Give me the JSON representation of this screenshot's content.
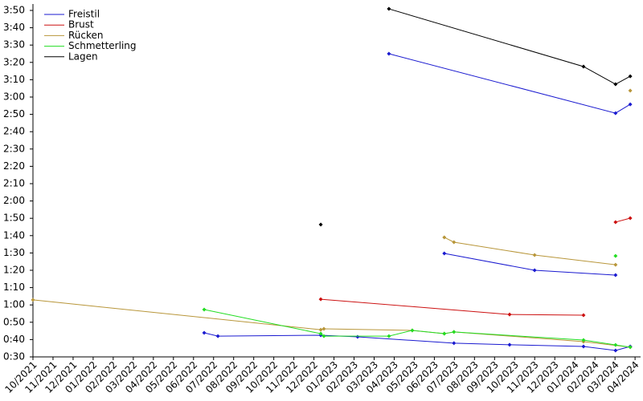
{
  "chart_data": {
    "type": "line",
    "legend": "upper left",
    "xlim": [
      2021.75,
      2024.273
    ],
    "ylim": [
      30,
      233.7
    ],
    "xticks": [
      {
        "value": 2021.75,
        "label": "10/2021"
      },
      {
        "value": 2021.8333,
        "label": "11/2021"
      },
      {
        "value": 2021.9167,
        "label": "12/2021"
      },
      {
        "value": 2022,
        "label": "01/2022"
      },
      {
        "value": 2022.0833,
        "label": "02/2022"
      },
      {
        "value": 2022.1667,
        "label": "03/2022"
      },
      {
        "value": 2022.25,
        "label": "04/2022"
      },
      {
        "value": 2022.3333,
        "label": "05/2022"
      },
      {
        "value": 2022.4167,
        "label": "06/2022"
      },
      {
        "value": 2022.5,
        "label": "07/2022"
      },
      {
        "value": 2022.5833,
        "label": "08/2022"
      },
      {
        "value": 2022.6667,
        "label": "09/2022"
      },
      {
        "value": 2022.75,
        "label": "10/2022"
      },
      {
        "value": 2022.8333,
        "label": "11/2022"
      },
      {
        "value": 2022.9167,
        "label": "12/2022"
      },
      {
        "value": 2023,
        "label": "01/2023"
      },
      {
        "value": 2023.0833,
        "label": "02/2023"
      },
      {
        "value": 2023.1667,
        "label": "03/2023"
      },
      {
        "value": 2023.25,
        "label": "04/2023"
      },
      {
        "value": 2023.3333,
        "label": "05/2023"
      },
      {
        "value": 2023.4167,
        "label": "06/2023"
      },
      {
        "value": 2023.5,
        "label": "07/2023"
      },
      {
        "value": 2023.5833,
        "label": "08/2023"
      },
      {
        "value": 2023.6667,
        "label": "09/2023"
      },
      {
        "value": 2023.75,
        "label": "10/2023"
      },
      {
        "value": 2023.8333,
        "label": "11/2023"
      },
      {
        "value": 2023.9167,
        "label": "12/2023"
      },
      {
        "value": 2024,
        "label": "01/2024"
      },
      {
        "value": 2024.0833,
        "label": "02/2024"
      },
      {
        "value": 2024.1667,
        "label": "03/2024"
      },
      {
        "value": 2024.25,
        "label": "04/2024"
      }
    ],
    "yticks": [
      {
        "value": 30,
        "label": "0:30"
      },
      {
        "value": 40,
        "label": "0:40"
      },
      {
        "value": 50,
        "label": "0:50"
      },
      {
        "value": 60,
        "label": "1:00"
      },
      {
        "value": 70,
        "label": "1:10"
      },
      {
        "value": 80,
        "label": "1:20"
      },
      {
        "value": 90,
        "label": "1:30"
      },
      {
        "value": 100,
        "label": "1:40"
      },
      {
        "value": 110,
        "label": "1:50"
      },
      {
        "value": 120,
        "label": "2:00"
      },
      {
        "value": 130,
        "label": "2:10"
      },
      {
        "value": 140,
        "label": "2:20"
      },
      {
        "value": 150,
        "label": "2:30"
      },
      {
        "value": 160,
        "label": "2:40"
      },
      {
        "value": 170,
        "label": "2:50"
      },
      {
        "value": 180,
        "label": "3:00"
      },
      {
        "value": 190,
        "label": "3:10"
      },
      {
        "value": 200,
        "label": "3:20"
      },
      {
        "value": 210,
        "label": "3:30"
      },
      {
        "value": 220,
        "label": "3:40"
      },
      {
        "value": 230,
        "label": "3:50"
      }
    ],
    "series": [
      {
        "name": "Freistil",
        "color": "#1a1ad0",
        "x": [
          2022.461,
          2022.518,
          2022.945,
          2023.098,
          2023.498,
          2023.729,
          2024.036,
          2024.169,
          2024.23
        ],
        "values": [
          43.9,
          42,
          42.5,
          41.6,
          37.9,
          37,
          36,
          33.7,
          36
        ]
      },
      {
        "name": "Brust",
        "color": "#cc1010",
        "x": [
          2022.945,
          2023.729,
          2024.036
        ],
        "values": [
          63.3,
          54.5,
          54.1
        ]
      },
      {
        "name": "Rücken",
        "color": "#b8963a",
        "x": [
          2021.75,
          2022.945,
          2022.958,
          2023.325,
          2023.458,
          2023.498,
          2024.036,
          2024.23
        ],
        "values": [
          62.9,
          45.7,
          46.2,
          45.3,
          43.4,
          44.4,
          38.8,
          35.6
        ]
      },
      {
        "name": "Schmetterling",
        "color": "#22dd22",
        "x": [
          2022.461,
          2022.945,
          2022.958,
          2023.228,
          2023.325,
          2023.458,
          2023.498,
          2024.036,
          2024.169,
          2024.23
        ],
        "values": [
          57.3,
          43.4,
          42,
          42,
          45.3,
          43.4,
          44.4,
          39.7,
          36.9,
          35.6
        ]
      },
      {
        "name": "Lagen",
        "color": "#000000",
        "x": [
          2023.228,
          2024.036,
          2024.169,
          2024.23
        ],
        "values": [
          230.9,
          197.6,
          187.4,
          192
        ]
      },
      {
        "color": "#1a1ad0",
        "x": [
          2023.228,
          2024.169,
          2024.23
        ],
        "values": [
          205,
          170.7,
          175.8
        ]
      },
      {
        "color": "#1a1ad0",
        "x": [
          2023.458,
          2023.833,
          2024.169
        ],
        "values": [
          89.7,
          80,
          77.2
        ]
      },
      {
        "color": "#cc1010",
        "x": [
          2024.169,
          2024.23
        ],
        "values": [
          107.8,
          110.1
        ]
      },
      {
        "color": "#b8963a",
        "x": [
          2023.458,
          2023.498,
          2023.833,
          2024.169
        ],
        "values": [
          99,
          96.2,
          88.8,
          83.2
        ]
      },
      {
        "color": "#b8963a",
        "x": [
          2024.23
        ],
        "values": [
          183.7
        ]
      },
      {
        "color": "#22dd22",
        "x": [
          2024.169
        ],
        "values": [
          88.3
        ]
      },
      {
        "color": "#000000",
        "x": [
          2022.945
        ],
        "values": [
          106.4
        ]
      }
    ]
  }
}
